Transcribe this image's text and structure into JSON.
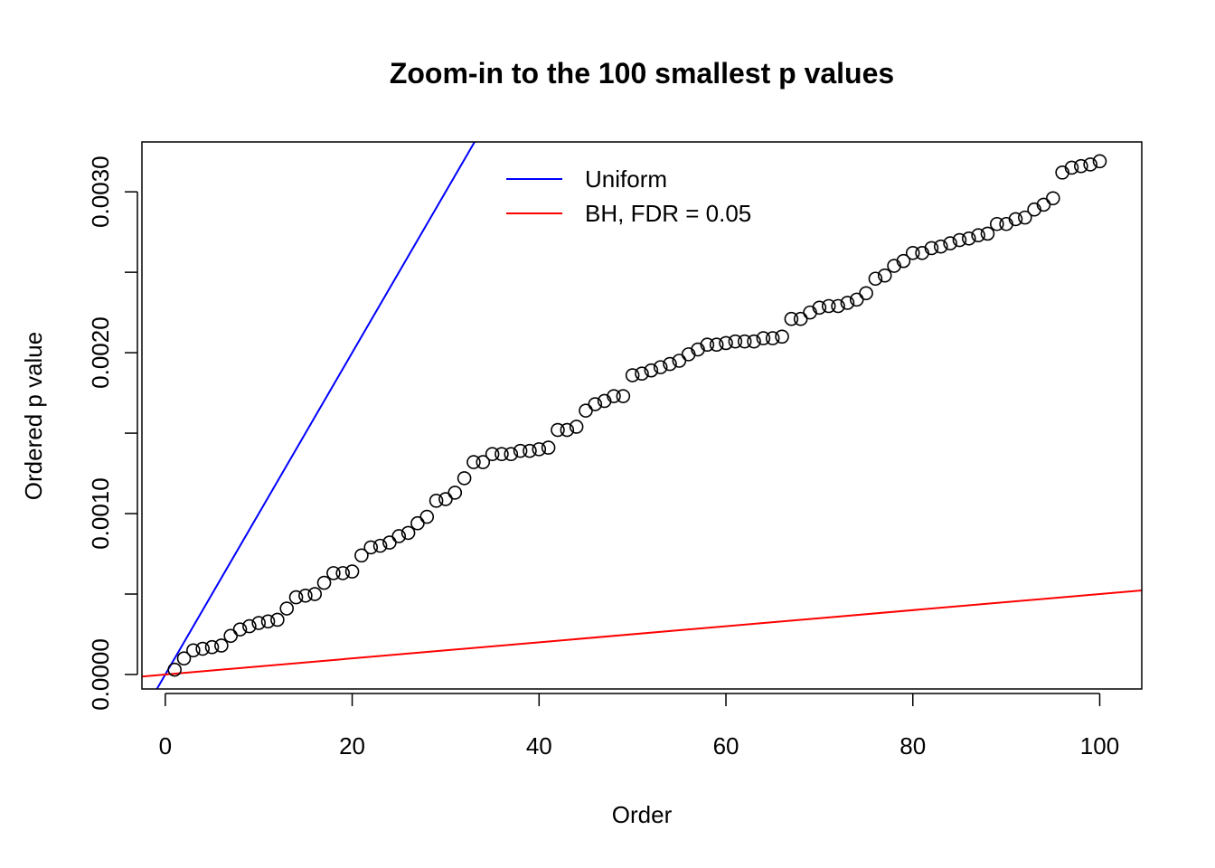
{
  "chart_data": {
    "type": "scatter",
    "title": "Zoom-in to the 100 smallest p values",
    "xlabel": "Order",
    "ylabel": "Ordered p value",
    "xlim": [
      -2.5,
      104.5
    ],
    "ylim": [
      -9e-05,
      0.00331
    ],
    "x_ticks": [
      0,
      20,
      40,
      60,
      80,
      100
    ],
    "x_tick_labels": [
      "0",
      "20",
      "40",
      "60",
      "80",
      "100"
    ],
    "y_ticks": [
      0,
      0.0005,
      0.001,
      0.0015,
      0.002,
      0.0025,
      0.003
    ],
    "y_tick_labels": [
      "0.0000",
      "",
      "0.0010",
      "",
      "0.0020",
      "",
      "0.0030"
    ],
    "grid": false,
    "legend": {
      "position": "top-center",
      "entries": [
        {
          "label": "Uniform",
          "color": "#0000ff"
        },
        {
          "label": "BH, FDR = 0.05",
          "color": "#ff0000"
        }
      ]
    },
    "lines": [
      {
        "name": "Uniform",
        "intercept": 0,
        "slope": 0.0001,
        "color": "#0000ff"
      },
      {
        "name": "BH, FDR = 0.05",
        "intercept": 0,
        "slope": 5e-06,
        "color": "#ff0000"
      }
    ],
    "series": [
      {
        "name": "Ordered p values",
        "marker": "open-circle",
        "color": "#000000",
        "x": [
          1,
          2,
          3,
          4,
          5,
          6,
          7,
          8,
          9,
          10,
          11,
          12,
          13,
          14,
          15,
          16,
          17,
          18,
          19,
          20,
          21,
          22,
          23,
          24,
          25,
          26,
          27,
          28,
          29,
          30,
          31,
          32,
          33,
          34,
          35,
          36,
          37,
          38,
          39,
          40,
          41,
          42,
          43,
          44,
          45,
          46,
          47,
          48,
          49,
          50,
          51,
          52,
          53,
          54,
          55,
          56,
          57,
          58,
          59,
          60,
          61,
          62,
          63,
          64,
          65,
          66,
          67,
          68,
          69,
          70,
          71,
          72,
          73,
          74,
          75,
          76,
          77,
          78,
          79,
          80,
          81,
          82,
          83,
          84,
          85,
          86,
          87,
          88,
          89,
          90,
          91,
          92,
          93,
          94,
          95,
          96,
          97,
          98,
          99,
          100
        ],
        "values": [
          3e-05,
          0.0001,
          0.00015,
          0.00016,
          0.00017,
          0.00018,
          0.00024,
          0.00028,
          0.0003,
          0.00032,
          0.00033,
          0.00034,
          0.00041,
          0.00048,
          0.00049,
          0.0005,
          0.00057,
          0.00063,
          0.00063,
          0.00064,
          0.00074,
          0.00079,
          0.0008,
          0.00082,
          0.00086,
          0.00088,
          0.00094,
          0.00098,
          0.00108,
          0.00109,
          0.00113,
          0.00122,
          0.00132,
          0.00132,
          0.00137,
          0.00137,
          0.00137,
          0.00139,
          0.00139,
          0.0014,
          0.00141,
          0.00152,
          0.00152,
          0.00154,
          0.00164,
          0.00168,
          0.0017,
          0.00173,
          0.00173,
          0.00186,
          0.00187,
          0.00189,
          0.00191,
          0.00193,
          0.00195,
          0.00199,
          0.00202,
          0.00205,
          0.00205,
          0.00206,
          0.00207,
          0.00207,
          0.00207,
          0.00209,
          0.00209,
          0.0021,
          0.00221,
          0.00221,
          0.00225,
          0.00228,
          0.00229,
          0.00229,
          0.00231,
          0.00233,
          0.00237,
          0.00246,
          0.00248,
          0.00254,
          0.00257,
          0.00262,
          0.00262,
          0.00265,
          0.00266,
          0.00268,
          0.0027,
          0.00271,
          0.00273,
          0.00274,
          0.0028,
          0.0028,
          0.00283,
          0.00284,
          0.00289,
          0.00292,
          0.00296,
          0.00312,
          0.00315,
          0.00316,
          0.00317,
          0.00319
        ]
      }
    ]
  }
}
